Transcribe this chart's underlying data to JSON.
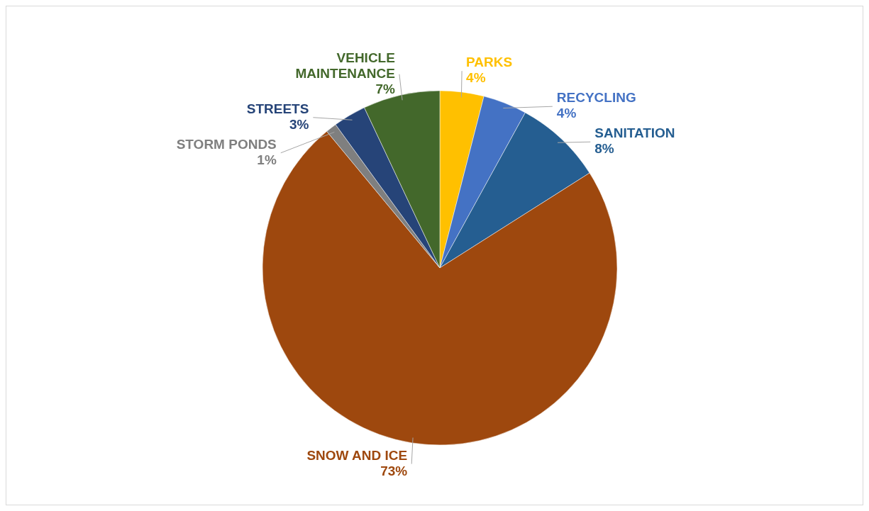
{
  "chart_data": {
    "type": "pie",
    "categories": [
      "PARKS",
      "RECYCLING",
      "SANITATION",
      "SNOW AND ICE",
      "STORM PONDS",
      "STREETS",
      "VEHICLE MAINTENANCE"
    ],
    "values": [
      4,
      4,
      8,
      73,
      1,
      3,
      7
    ],
    "value_labels": [
      "4%",
      "4%",
      "8%",
      "73%",
      "1%",
      "3%",
      "7%"
    ],
    "colors": [
      "#ffc000",
      "#4472c4",
      "#255e91",
      "#9e480e",
      "#7f7f7f",
      "#264478",
      "#43682b"
    ]
  }
}
